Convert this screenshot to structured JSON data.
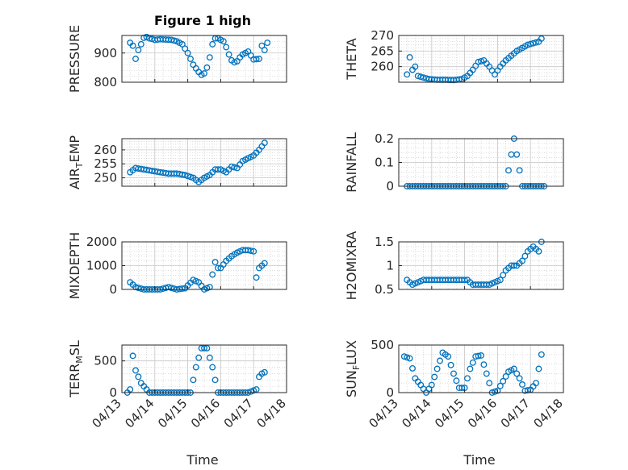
{
  "figure_title": "Figure 1 high",
  "colors": {
    "marker": "#0072bd",
    "axes": "#262626",
    "grid": "#c8c8c8"
  },
  "chart_data": [
    {
      "type": "scatter",
      "ylabel": "PRESSURE",
      "xlim": [
        "04/13",
        "04/18"
      ],
      "ylim": [
        800,
        960
      ],
      "yticks": [
        800,
        900
      ],
      "grid": true,
      "x": [
        "04/13 06:00",
        "04/13 08:00",
        "04/13 10:00",
        "04/13 12:00",
        "04/13 14:00",
        "04/13 16:00",
        "04/13 18:00",
        "04/13 20:00",
        "04/13 22:00",
        "04/14 00:00",
        "04/14 04:00",
        "04/14 08:00",
        "04/14 12:00",
        "04/14 16:00",
        "04/14 20:00",
        "04/15 00:00",
        "04/15 04:00",
        "04/15 08:00",
        "04/15 10:00",
        "04/15 12:00",
        "04/15 14:00",
        "04/15 16:00",
        "04/15 18:00",
        "04/15 20:00",
        "04/15 22:00",
        "04/16 00:00",
        "04/16 02:00",
        "04/16 04:00",
        "04/16 06:00",
        "04/16 08:00",
        "04/16 10:00",
        "04/16 12:00",
        "04/16 14:00",
        "04/16 16:00",
        "04/16 18:00",
        "04/16 20:00",
        "04/17 00:00",
        "04/17 04:00",
        "04/17 06:00",
        "04/17 08:00",
        "04/17 10:00"
      ],
      "y": [
        935,
        925,
        880,
        910,
        930,
        952,
        955,
        950,
        948,
        945,
        947,
        946,
        945,
        940,
        930,
        900,
        860,
        835,
        825,
        830,
        850,
        885,
        930,
        950,
        950,
        945,
        940,
        920,
        895,
        875,
        868,
        872,
        885,
        895,
        900,
        905,
        878,
        880,
        925,
        910,
        935
      ]
    },
    {
      "type": "scatter",
      "ylabel": "THETA",
      "xlim": [
        "04/13",
        "04/18"
      ],
      "ylim": [
        255,
        270
      ],
      "yticks": [
        260,
        265,
        270
      ],
      "grid": true,
      "x": [
        "04/13 06:00",
        "04/13 08:00",
        "04/13 10:00",
        "04/13 12:00",
        "04/13 14:00",
        "04/13 18:00",
        "04/13 22:00",
        "04/14 04:00",
        "04/14 10:00",
        "04/14 16:00",
        "04/14 22:00",
        "04/15 02:00",
        "04/15 06:00",
        "04/15 10:00",
        "04/15 14:00",
        "04/15 18:00",
        "04/15 22:00",
        "04/16 02:00",
        "04/16 06:00",
        "04/16 10:00",
        "04/16 14:00",
        "04/16 18:00",
        "04/16 22:00",
        "04/17 02:00",
        "04/17 06:00",
        "04/17 08:00"
      ],
      "y": [
        257.5,
        263,
        259,
        260,
        257,
        256.5,
        256,
        255.8,
        255.8,
        255.7,
        256,
        257,
        259,
        261.5,
        262,
        260,
        257.5,
        260,
        262,
        263.5,
        265,
        266,
        267,
        267.5,
        268,
        269
      ]
    },
    {
      "type": "scatter",
      "ylabel": "AIR_TEMP",
      "xlim": [
        "04/13",
        "04/18"
      ],
      "ylim": [
        247,
        264
      ],
      "yticks": [
        250,
        255,
        260
      ],
      "grid": true,
      "x": [
        "04/13 06:00",
        "04/13 10:00",
        "04/13 16:00",
        "04/13 22:00",
        "04/14 04:00",
        "04/14 10:00",
        "04/14 16:00",
        "04/14 22:00",
        "04/15 04:00",
        "04/15 08:00",
        "04/15 12:00",
        "04/15 16:00",
        "04/15 20:00",
        "04/16 00:00",
        "04/16 04:00",
        "04/16 08:00",
        "04/16 12:00",
        "04/16 16:00",
        "04/16 20:00",
        "04/17 00:00",
        "04/17 04:00",
        "04/17 08:00"
      ],
      "y": [
        252,
        253.5,
        253,
        252.5,
        252,
        251.5,
        251.5,
        251,
        250,
        248.5,
        250,
        251,
        253,
        253,
        252,
        254,
        253.5,
        256,
        257,
        258,
        260,
        262.5
      ]
    },
    {
      "type": "scatter",
      "ylabel": "RAINFALL",
      "xlim": [
        "04/13",
        "04/18"
      ],
      "ylim": [
        0,
        0.2
      ],
      "yticks": [
        0,
        0.1,
        0.2
      ],
      "grid": true,
      "x": [
        "04/13 06:00",
        "04/13 18:00",
        "04/14 06:00",
        "04/14 18:00",
        "04/15 06:00",
        "04/15 18:00",
        "04/16 06:00",
        "04/16 12:00",
        "04/16 18:00",
        "04/17 06:00",
        "04/17 10:00"
      ],
      "y": [
        0,
        0,
        0,
        0,
        0,
        0,
        0,
        0.2,
        0,
        0,
        0
      ]
    },
    {
      "type": "scatter",
      "ylabel": "MIXDEPTH",
      "xlim": [
        "04/13",
        "04/18"
      ],
      "ylim": [
        0,
        2000
      ],
      "yticks": [
        0,
        1000,
        2000
      ],
      "grid": true,
      "x": [
        "04/13 06:00",
        "04/13 10:00",
        "04/13 16:00",
        "04/13 22:00",
        "04/14 04:00",
        "04/14 10:00",
        "04/14 16:00",
        "04/14 22:00",
        "04/15 04:00",
        "04/15 08:00",
        "04/15 12:00",
        "04/15 16:00",
        "04/15 20:00",
        "04/15 22:00",
        "04/16 00:00",
        "04/16 04:00",
        "04/16 08:00",
        "04/16 12:00",
        "04/16 16:00",
        "04/16 20:00",
        "04/17 00:00",
        "04/17 02:00",
        "04/17 04:00",
        "04/17 06:00",
        "04/17 08:00"
      ],
      "y": [
        300,
        100,
        0,
        0,
        0,
        100,
        0,
        50,
        400,
        300,
        0,
        100,
        1150,
        900,
        900,
        1200,
        1400,
        1550,
        1650,
        1650,
        1600,
        500,
        900,
        1000,
        1100
      ]
    },
    {
      "type": "scatter",
      "ylabel": "H2OMIXRA",
      "xlim": [
        "04/13",
        "04/18"
      ],
      "ylim": [
        0.5,
        1.5
      ],
      "yticks": [
        0.5,
        1,
        1.5
      ],
      "grid": true,
      "x": [
        "04/13 06:00",
        "04/13 10:00",
        "04/13 18:00",
        "04/14 06:00",
        "04/14 18:00",
        "04/15 02:00",
        "04/15 06:00",
        "04/15 18:00",
        "04/16 02:00",
        "04/16 06:00",
        "04/16 10:00",
        "04/16 14:00",
        "04/16 18:00",
        "04/16 22:00",
        "04/17 02:00",
        "04/17 06:00",
        "04/17 08:00"
      ],
      "y": [
        0.7,
        0.6,
        0.7,
        0.7,
        0.7,
        0.7,
        0.6,
        0.6,
        0.7,
        0.9,
        1.0,
        1.0,
        1.1,
        1.3,
        1.4,
        1.3,
        1.5
      ]
    },
    {
      "type": "scatter",
      "ylabel": "TERR_MSL",
      "xlim": [
        "04/13",
        "04/18"
      ],
      "ylim": [
        0,
        750
      ],
      "yticks": [
        0,
        500
      ],
      "grid": true,
      "x": [
        "04/13 04:00",
        "04/13 06:00",
        "04/13 08:00",
        "04/13 10:00",
        "04/13 14:00",
        "04/13 20:00",
        "04/14 04:00",
        "04/14 12:00",
        "04/14 20:00",
        "04/15 02:00",
        "04/15 06:00",
        "04/15 10:00",
        "04/15 14:00",
        "04/15 18:00",
        "04/15 22:00",
        "04/16 04:00",
        "04/16 12:00",
        "04/16 20:00",
        "04/17 02:00",
        "04/17 04:00",
        "04/17 06:00",
        "04/17 08:00"
      ],
      "y": [
        0,
        50,
        580,
        350,
        150,
        0,
        0,
        0,
        0,
        0,
        400,
        700,
        700,
        400,
        0,
        0,
        0,
        0,
        50,
        250,
        300,
        320
      ]
    },
    {
      "type": "scatter",
      "ylabel": "SUN_FLUX",
      "xlim": [
        "04/13",
        "04/18"
      ],
      "ylim": [
        0,
        500
      ],
      "yticks": [
        0,
        500
      ],
      "grid": true,
      "x": [
        "04/13 04:00",
        "04/13 08:00",
        "04/13 12:00",
        "04/13 16:00",
        "04/13 20:00",
        "04/14 00:00",
        "04/14 04:00",
        "04/14 08:00",
        "04/14 12:00",
        "04/14 16:00",
        "04/14 20:00",
        "04/15 00:00",
        "04/15 04:00",
        "04/15 08:00",
        "04/15 12:00",
        "04/15 16:00",
        "04/15 20:00",
        "04/16 00:00",
        "04/16 04:00",
        "04/16 08:00",
        "04/16 12:00",
        "04/16 16:00",
        "04/16 20:00",
        "04/17 00:00",
        "04/17 04:00",
        "04/17 08:00"
      ],
      "y": [
        380,
        360,
        150,
        80,
        0,
        80,
        250,
        420,
        380,
        200,
        50,
        50,
        250,
        380,
        390,
        200,
        0,
        20,
        120,
        220,
        250,
        150,
        20,
        30,
        100,
        400
      ]
    }
  ],
  "x_ticks": [
    "04/13",
    "04/14",
    "04/15",
    "04/16",
    "04/17",
    "04/18"
  ],
  "xlabel": "Time"
}
